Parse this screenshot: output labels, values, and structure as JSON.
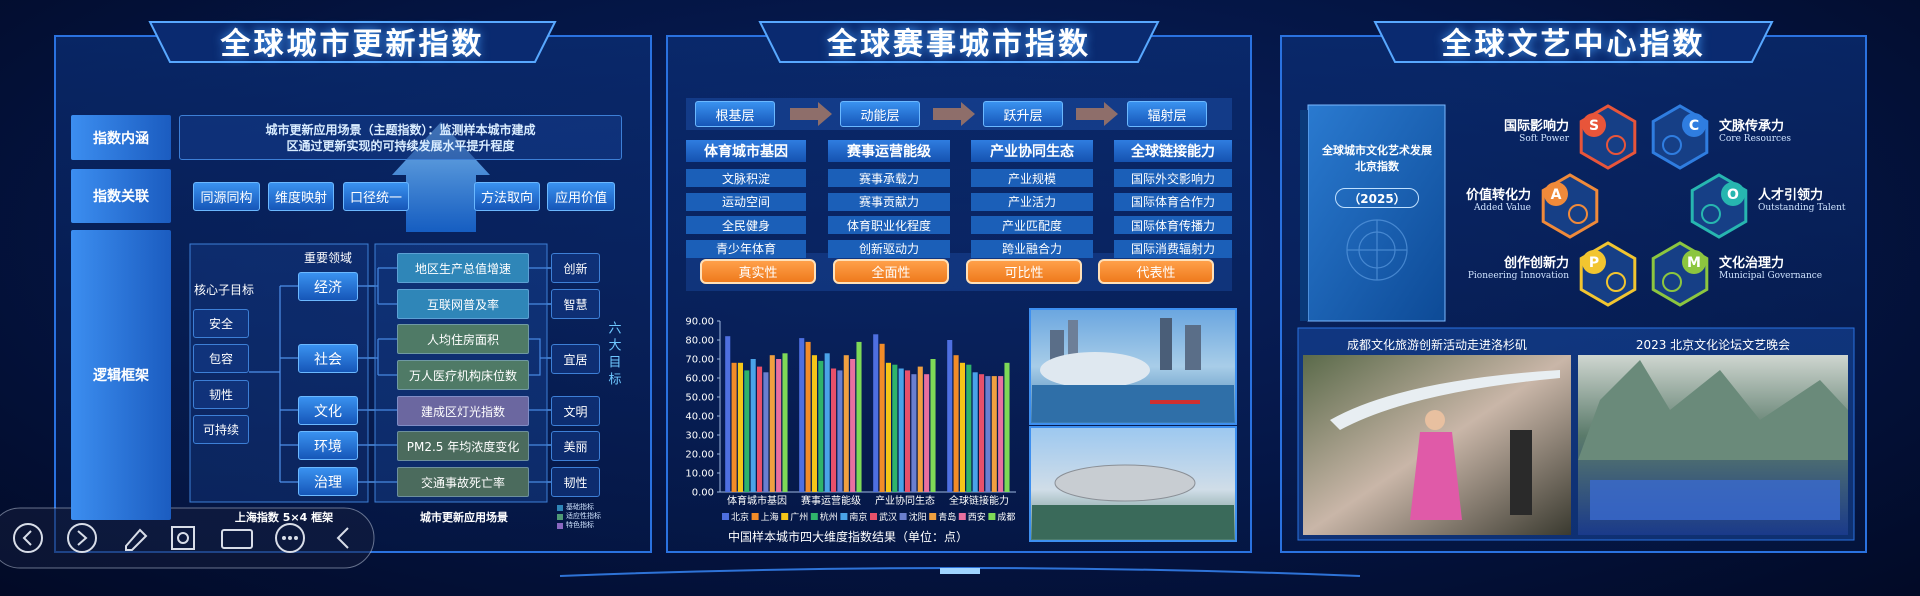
{
  "left_panel": {
    "title": "全球城市更新指数",
    "intro_label": "指数内涵",
    "intro_text": "城市更新应用场景（主题指数）：监测样本城市建成区通过更新实现的可持续发展水平提升程度",
    "relation_label": "指数关联",
    "relations": [
      "同源同构",
      "维度映射",
      "口径统一",
      "方法取向",
      "应用价值"
    ],
    "logic_label": "逻辑框架",
    "core_goal_title": "核心子目标",
    "core_goals": [
      "安全",
      "包容",
      "韧性",
      "可持续"
    ],
    "domain_title": "重要领域",
    "domains": [
      "经济",
      "社会",
      "文化",
      "环境",
      "治理"
    ],
    "indicators": [
      "地区生产总值增速",
      "互联网普及率",
      "人均住房面积",
      "万人医疗机构床位数",
      "建成区灯光指数",
      "PM2.5 年均浓度变化",
      "交通事故死亡率"
    ],
    "goals": [
      "创新",
      "智慧",
      "宜居",
      "文明",
      "美丽",
      "韧性"
    ],
    "goals_title": "六大目标",
    "footer_left": "上海指数 5×4 框架",
    "footer_right": "城市更新应用场景",
    "legend": [
      "基础指标",
      "适应性指标",
      "特色指标"
    ]
  },
  "middle_panel": {
    "title": "全球赛事城市指数",
    "layers": [
      "根基层",
      "动能层",
      "跃升层",
      "辐射层"
    ],
    "dimensions": [
      {
        "name": "体育城市基因",
        "items": [
          "文脉积淀",
          "运动空间",
          "全民健身",
          "青少年体育"
        ]
      },
      {
        "name": "赛事运营能级",
        "items": [
          "赛事承载力",
          "赛事贡献力",
          "体育职业化程度",
          "创新驱动力"
        ]
      },
      {
        "name": "产业协同生态",
        "items": [
          "产业规模",
          "产业活力",
          "产业匹配度",
          "跨业融合力"
        ]
      },
      {
        "name": "全球链接能力",
        "items": [
          "国际外交影响力",
          "国际体育合作力",
          "国际体育传播力",
          "国际消费辐射力"
        ]
      }
    ],
    "principles": [
      "真实性",
      "全面性",
      "可比性",
      "代表性"
    ]
  },
  "chart_data": {
    "type": "bar",
    "title": "中国样本城市四大维度指数结果（单位：点）",
    "categories": [
      "体育城市基因",
      "赛事运营能级",
      "产业协同生态",
      "全球链接能力"
    ],
    "series": [
      {
        "name": "北京",
        "color": "#4e6fe0",
        "values": [
          82,
          81,
          83,
          80
        ]
      },
      {
        "name": "上海",
        "color": "#f28c28",
        "values": [
          68,
          79,
          78,
          72
        ]
      },
      {
        "name": "广州",
        "color": "#f5c518",
        "values": [
          68,
          72,
          68,
          68
        ]
      },
      {
        "name": "杭州",
        "color": "#2fb36b",
        "values": [
          64,
          69,
          67,
          67
        ]
      },
      {
        "name": "南京",
        "color": "#4aa3e8",
        "values": [
          70,
          73,
          65,
          63
        ]
      },
      {
        "name": "武汉",
        "color": "#e8506a",
        "values": [
          66,
          65,
          64,
          62
        ]
      },
      {
        "name": "沈阳",
        "color": "#6a7fd0",
        "values": [
          63,
          64,
          62,
          61
        ]
      },
      {
        "name": "青岛",
        "color": "#f0a040",
        "values": [
          72,
          72,
          66,
          61
        ]
      },
      {
        "name": "西安",
        "color": "#e870a0",
        "values": [
          70,
          70,
          62,
          61
        ]
      },
      {
        "name": "成都",
        "color": "#7ed957",
        "values": [
          73,
          79,
          70,
          68
        ]
      }
    ],
    "ylim": [
      0,
      90
    ],
    "yticks": [
      {
        "value": 0,
        "label": "0.00"
      },
      {
        "value": 10,
        "label": "10.00"
      },
      {
        "value": 20,
        "label": "20.00"
      },
      {
        "value": 30,
        "label": "30.00"
      },
      {
        "value": 40,
        "label": "40.00"
      },
      {
        "value": 50,
        "label": "50.00"
      },
      {
        "value": 60,
        "label": "60.00"
      },
      {
        "value": 70,
        "label": "70.00"
      },
      {
        "value": 80,
        "label": "80.00"
      },
      {
        "value": 90,
        "label": "90.00"
      }
    ],
    "grid": false
  },
  "right_panel": {
    "title": "全球文艺中心指数",
    "book_title": [
      "全球城市文化艺术发展",
      "北京指数"
    ],
    "book_year": "（2025）",
    "dimensions": [
      {
        "letter": "S",
        "name": "国际影响力",
        "english": "Soft Power",
        "color": "#e8553a"
      },
      {
        "letter": "C",
        "name": "文脉传承力",
        "english": "Core Resources",
        "color": "#2f7de0"
      },
      {
        "letter": "A",
        "name": "价值转化力",
        "english": "Added Value",
        "color": "#f08a3a"
      },
      {
        "letter": "O",
        "name": "人才引领力",
        "english": "Outstanding Talent",
        "color": "#27b6b0"
      },
      {
        "letter": "P",
        "name": "创作创新力",
        "english": "Pioneering Innovation",
        "color": "#f2c530"
      },
      {
        "letter": "M",
        "name": "文化治理力",
        "english": "Municipal Governance",
        "color": "#8cc63f"
      }
    ],
    "photos": [
      "成都文化旅游创新活动走进洛杉矶",
      "2023 北京文化论坛文艺晚会"
    ]
  }
}
